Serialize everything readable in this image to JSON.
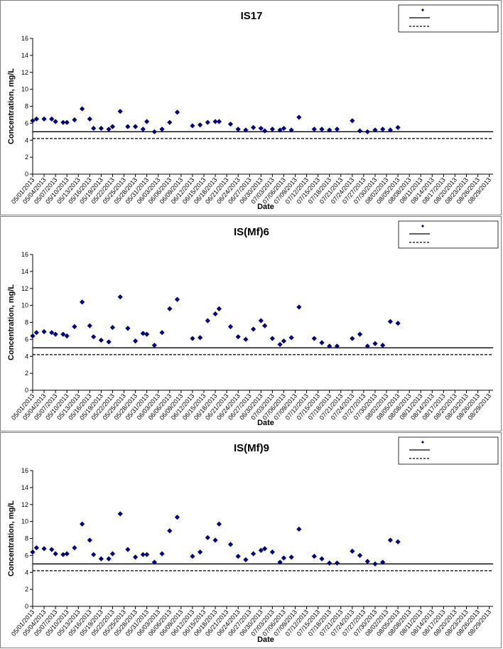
{
  "chart_data": [
    {
      "type": "scatter",
      "title": "IS17",
      "xlabel": "Date",
      "ylabel": "Concentration, mg/L",
      "ylim": [
        0,
        16
      ],
      "yticks": [
        0,
        2,
        4,
        6,
        8,
        10,
        12,
        14,
        16
      ],
      "x_start": "05/01/2013",
      "x_end": "08/30/2013",
      "x_tick_labels": [
        "05/01/2013",
        "05/04/2013",
        "05/07/2013",
        "05/10/2013",
        "05/13/2013",
        "05/16/2013",
        "05/19/2013",
        "05/22/2013",
        "05/25/2013",
        "05/28/2013",
        "05/31/2013",
        "06/03/2013",
        "06/06/2013",
        "06/09/2013",
        "06/12/2013",
        "06/15/2013",
        "06/18/2013",
        "06/21/2013",
        "06/24/2013",
        "06/27/2013",
        "06/30/2013",
        "07/03/2013",
        "07/06/2013",
        "07/09/2013",
        "07/12/2013",
        "07/15/2013",
        "07/18/2013",
        "07/21/2013",
        "07/24/2013",
        "07/27/2013",
        "07/30/2013",
        "08/02/2013",
        "08/05/2013",
        "08/08/2013",
        "08/11/2013",
        "08/14/2013",
        "08/17/2013",
        "08/20/2013",
        "08/23/2013",
        "08/26/2013",
        "08/29/2013"
      ],
      "grid": false,
      "legend_position": "top-right",
      "series": [
        {
          "points": [
            [
              "05/01/2013",
              6.3
            ],
            [
              "05/02/2013",
              6.5
            ],
            [
              "05/04/2013",
              6.5
            ],
            [
              "05/06/2013",
              6.5
            ],
            [
              "05/07/2013",
              6.2
            ],
            [
              "05/09/2013",
              6.1
            ],
            [
              "05/10/2013",
              6.1
            ],
            [
              "05/12/2013",
              6.4
            ],
            [
              "05/14/2013",
              7.7
            ],
            [
              "05/16/2013",
              6.5
            ],
            [
              "05/17/2013",
              5.4
            ],
            [
              "05/19/2013",
              5.4
            ],
            [
              "05/21/2013",
              5.3
            ],
            [
              "05/22/2013",
              5.6
            ],
            [
              "05/24/2013",
              7.4
            ],
            [
              "05/26/2013",
              5.6
            ],
            [
              "05/28/2013",
              5.6
            ],
            [
              "05/30/2013",
              5.3
            ],
            [
              "05/31/2013",
              6.2
            ],
            [
              "06/02/2013",
              5.0
            ],
            [
              "06/04/2013",
              5.3
            ],
            [
              "06/06/2013",
              6.1
            ],
            [
              "06/08/2013",
              7.3
            ],
            [
              "06/12/2013",
              5.7
            ],
            [
              "06/14/2013",
              5.8
            ],
            [
              "06/16/2013",
              6.1
            ],
            [
              "06/18/2013",
              6.2
            ],
            [
              "06/19/2013",
              6.2
            ],
            [
              "06/22/2013",
              5.9
            ],
            [
              "06/24/2013",
              5.3
            ],
            [
              "06/26/2013",
              5.2
            ],
            [
              "06/28/2013",
              5.5
            ],
            [
              "06/30/2013",
              5.4
            ],
            [
              "07/01/2013",
              5.1
            ],
            [
              "07/03/2013",
              5.3
            ],
            [
              "07/05/2013",
              5.2
            ],
            [
              "07/06/2013",
              5.4
            ],
            [
              "07/08/2013",
              5.2
            ],
            [
              "07/10/2013",
              6.7
            ],
            [
              "07/14/2013",
              5.3
            ],
            [
              "07/16/2013",
              5.3
            ],
            [
              "07/18/2013",
              5.2
            ],
            [
              "07/20/2013",
              5.3
            ],
            [
              "07/24/2013",
              6.3
            ],
            [
              "07/26/2013",
              5.1
            ],
            [
              "07/28/2013",
              5.0
            ],
            [
              "07/30/2013",
              5.2
            ],
            [
              "08/01/2013",
              5.3
            ],
            [
              "08/03/2013",
              5.2
            ],
            [
              "08/05/2013",
              5.5
            ]
          ],
          "marker": "diamond",
          "color": "#000080"
        }
      ],
      "reference_lines": [
        {
          "y": 5.0,
          "style": "solid"
        },
        {
          "y": 4.2,
          "style": "dashed"
        }
      ]
    },
    {
      "type": "scatter",
      "title": "IS(Mf)6",
      "xlabel": "Date",
      "ylabel": "Concentration, mg/L",
      "ylim": [
        0,
        16
      ],
      "yticks": [
        0,
        2,
        4,
        6,
        8,
        10,
        12,
        14,
        16
      ],
      "x_start": "05/01/2013",
      "x_end": "08/30/2013",
      "x_tick_labels": [
        "05/01/2013",
        "05/04/2013",
        "05/07/2013",
        "05/10/2013",
        "05/13/2013",
        "05/16/2013",
        "05/19/2013",
        "05/22/2013",
        "05/25/2013",
        "05/28/2013",
        "05/31/2013",
        "06/03/2013",
        "06/06/2013",
        "06/09/2013",
        "06/12/2013",
        "06/15/2013",
        "06/18/2013",
        "06/21/2013",
        "06/24/2013",
        "06/27/2013",
        "06/30/2013",
        "07/03/2013",
        "07/06/2013",
        "07/09/2013",
        "07/12/2013",
        "07/15/2013",
        "07/18/2013",
        "07/21/2013",
        "07/24/2013",
        "07/27/2013",
        "07/30/2013",
        "08/02/2013",
        "08/05/2013",
        "08/08/2013",
        "08/11/2013",
        "08/14/2013",
        "08/17/2013",
        "08/20/2013",
        "08/23/2013",
        "08/26/2013",
        "08/29/2013"
      ],
      "grid": false,
      "legend_position": "top-right",
      "series": [
        {
          "points": [
            [
              "05/01/2013",
              6.4
            ],
            [
              "05/02/2013",
              6.8
            ],
            [
              "05/04/2013",
              6.9
            ],
            [
              "05/06/2013",
              6.8
            ],
            [
              "05/07/2013",
              6.6
            ],
            [
              "05/09/2013",
              6.6
            ],
            [
              "05/10/2013",
              6.4
            ],
            [
              "05/12/2013",
              7.5
            ],
            [
              "05/14/2013",
              10.4
            ],
            [
              "05/16/2013",
              7.6
            ],
            [
              "05/17/2013",
              6.3
            ],
            [
              "05/19/2013",
              5.9
            ],
            [
              "05/21/2013",
              5.7
            ],
            [
              "05/22/2013",
              7.4
            ],
            [
              "05/24/2013",
              11.0
            ],
            [
              "05/26/2013",
              7.3
            ],
            [
              "05/28/2013",
              5.8
            ],
            [
              "05/30/2013",
              6.7
            ],
            [
              "05/31/2013",
              6.6
            ],
            [
              "06/02/2013",
              5.3
            ],
            [
              "06/04/2013",
              6.8
            ],
            [
              "06/06/2013",
              9.6
            ],
            [
              "06/08/2013",
              10.7
            ],
            [
              "06/12/2013",
              6.1
            ],
            [
              "06/14/2013",
              6.2
            ],
            [
              "06/16/2013",
              8.2
            ],
            [
              "06/18/2013",
              9.0
            ],
            [
              "06/19/2013",
              9.6
            ],
            [
              "06/22/2013",
              7.5
            ],
            [
              "06/24/2013",
              6.3
            ],
            [
              "06/26/2013",
              6.0
            ],
            [
              "06/28/2013",
              7.2
            ],
            [
              "06/30/2013",
              8.2
            ],
            [
              "07/01/2013",
              7.6
            ],
            [
              "07/03/2013",
              6.1
            ],
            [
              "07/05/2013",
              5.4
            ],
            [
              "07/06/2013",
              5.8
            ],
            [
              "07/08/2013",
              6.2
            ],
            [
              "07/10/2013",
              9.8
            ],
            [
              "07/14/2013",
              6.1
            ],
            [
              "07/16/2013",
              5.6
            ],
            [
              "07/18/2013",
              5.2
            ],
            [
              "07/20/2013",
              5.2
            ],
            [
              "07/24/2013",
              6.1
            ],
            [
              "07/26/2013",
              6.6
            ],
            [
              "07/28/2013",
              5.2
            ],
            [
              "07/30/2013",
              5.5
            ],
            [
              "08/01/2013",
              5.3
            ],
            [
              "08/03/2013",
              8.1
            ],
            [
              "08/05/2013",
              7.9
            ]
          ],
          "marker": "diamond",
          "color": "#000080"
        }
      ],
      "reference_lines": [
        {
          "y": 5.0,
          "style": "solid"
        },
        {
          "y": 4.2,
          "style": "dashed"
        }
      ]
    },
    {
      "type": "scatter",
      "title": "IS(Mf)9",
      "xlabel": "Date",
      "ylabel": "Concentration, mg/L",
      "ylim": [
        0,
        16
      ],
      "yticks": [
        0,
        2,
        4,
        6,
        8,
        10,
        12,
        14,
        16
      ],
      "x_start": "05/01/2013",
      "x_end": "08/30/2013",
      "x_tick_labels": [
        "05/01/2013",
        "05/04/2013",
        "05/07/2013",
        "05/10/2013",
        "05/13/2013",
        "05/16/2013",
        "05/19/2013",
        "05/22/2013",
        "05/25/2013",
        "05/28/2013",
        "05/31/2013",
        "06/03/2013",
        "06/06/2013",
        "06/09/2013",
        "06/12/2013",
        "06/15/2013",
        "06/18/2013",
        "06/21/2013",
        "06/24/2013",
        "06/27/2013",
        "06/30/2013",
        "07/03/2013",
        "07/06/2013",
        "07/09/2013",
        "07/12/2013",
        "07/15/2013",
        "07/18/2013",
        "07/21/2013",
        "07/24/2013",
        "07/27/2013",
        "07/30/2013",
        "08/02/2013",
        "08/05/2013",
        "08/08/2013",
        "08/11/2013",
        "08/14/2013",
        "08/17/2013",
        "08/20/2013",
        "08/23/2013",
        "08/26/2013",
        "08/29/2013"
      ],
      "grid": false,
      "legend_position": "top-right",
      "series": [
        {
          "points": [
            [
              "05/01/2013",
              6.4
            ],
            [
              "05/02/2013",
              6.9
            ],
            [
              "05/04/2013",
              6.8
            ],
            [
              "05/06/2013",
              6.7
            ],
            [
              "05/07/2013",
              6.2
            ],
            [
              "05/09/2013",
              6.1
            ],
            [
              "05/10/2013",
              6.2
            ],
            [
              "05/12/2013",
              6.9
            ],
            [
              "05/14/2013",
              9.7
            ],
            [
              "05/16/2013",
              7.8
            ],
            [
              "05/17/2013",
              6.1
            ],
            [
              "05/19/2013",
              5.6
            ],
            [
              "05/21/2013",
              5.6
            ],
            [
              "05/22/2013",
              6.2
            ],
            [
              "05/24/2013",
              10.9
            ],
            [
              "05/26/2013",
              6.7
            ],
            [
              "05/28/2013",
              5.8
            ],
            [
              "05/30/2013",
              6.1
            ],
            [
              "05/31/2013",
              6.1
            ],
            [
              "06/02/2013",
              5.2
            ],
            [
              "06/04/2013",
              6.2
            ],
            [
              "06/06/2013",
              8.9
            ],
            [
              "06/08/2013",
              10.5
            ],
            [
              "06/12/2013",
              5.9
            ],
            [
              "06/14/2013",
              6.4
            ],
            [
              "06/16/2013",
              8.1
            ],
            [
              "06/18/2013",
              7.8
            ],
            [
              "06/19/2013",
              9.7
            ],
            [
              "06/22/2013",
              7.3
            ],
            [
              "06/24/2013",
              5.9
            ],
            [
              "06/26/2013",
              5.5
            ],
            [
              "06/28/2013",
              6.2
            ],
            [
              "06/30/2013",
              6.6
            ],
            [
              "07/01/2013",
              6.8
            ],
            [
              "07/03/2013",
              6.4
            ],
            [
              "07/05/2013",
              5.2
            ],
            [
              "07/06/2013",
              5.7
            ],
            [
              "07/08/2013",
              5.8
            ],
            [
              "07/10/2013",
              9.1
            ],
            [
              "07/14/2013",
              5.9
            ],
            [
              "07/16/2013",
              5.6
            ],
            [
              "07/18/2013",
              5.1
            ],
            [
              "07/20/2013",
              5.1
            ],
            [
              "07/24/2013",
              6.5
            ],
            [
              "07/26/2013",
              6.0
            ],
            [
              "07/28/2013",
              5.3
            ],
            [
              "07/30/2013",
              5.0
            ],
            [
              "08/01/2013",
              5.2
            ],
            [
              "08/03/2013",
              7.8
            ],
            [
              "08/05/2013",
              7.6
            ]
          ],
          "marker": "diamond",
          "color": "#000080"
        }
      ],
      "reference_lines": [
        {
          "y": 5.0,
          "style": "solid"
        },
        {
          "y": 4.2,
          "style": "dashed"
        }
      ]
    }
  ]
}
